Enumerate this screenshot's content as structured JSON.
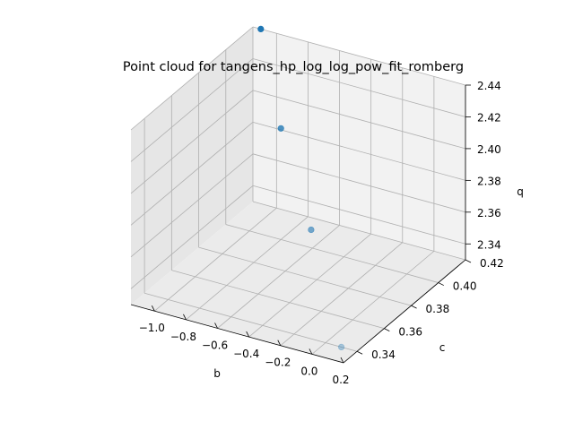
{
  "chart_data": {
    "type": "scatter",
    "projection": "3d",
    "title": "Point cloud for tangens_hp_log_log_pow_fit_romberg",
    "xlabel": "b",
    "ylabel": "c",
    "zlabel": "q",
    "xlim": [
      -1.15,
      0.2
    ],
    "ylim": [
      0.33,
      0.42
    ],
    "zlim": [
      2.33,
      2.44
    ],
    "x_ticks": [
      "−1.0",
      "−0.8",
      "−0.6",
      "−0.4",
      "−0.2",
      "0.0",
      "0.2"
    ],
    "y_ticks": [
      "0.34",
      "0.36",
      "0.38",
      "0.40",
      "0.42"
    ],
    "z_ticks": [
      "2.34",
      "2.36",
      "2.38",
      "2.40",
      "2.42",
      "2.44"
    ],
    "grid": true,
    "color": "#1f77b4",
    "points": [
      {
        "x": -1.1,
        "y": 0.42,
        "z": 2.44
      },
      {
        "x": -0.8,
        "y": 0.4,
        "z": 2.4
      },
      {
        "x": -0.35,
        "y": 0.37,
        "z": 2.37
      },
      {
        "x": 0.1,
        "y": 0.34,
        "z": 2.33
      }
    ]
  }
}
